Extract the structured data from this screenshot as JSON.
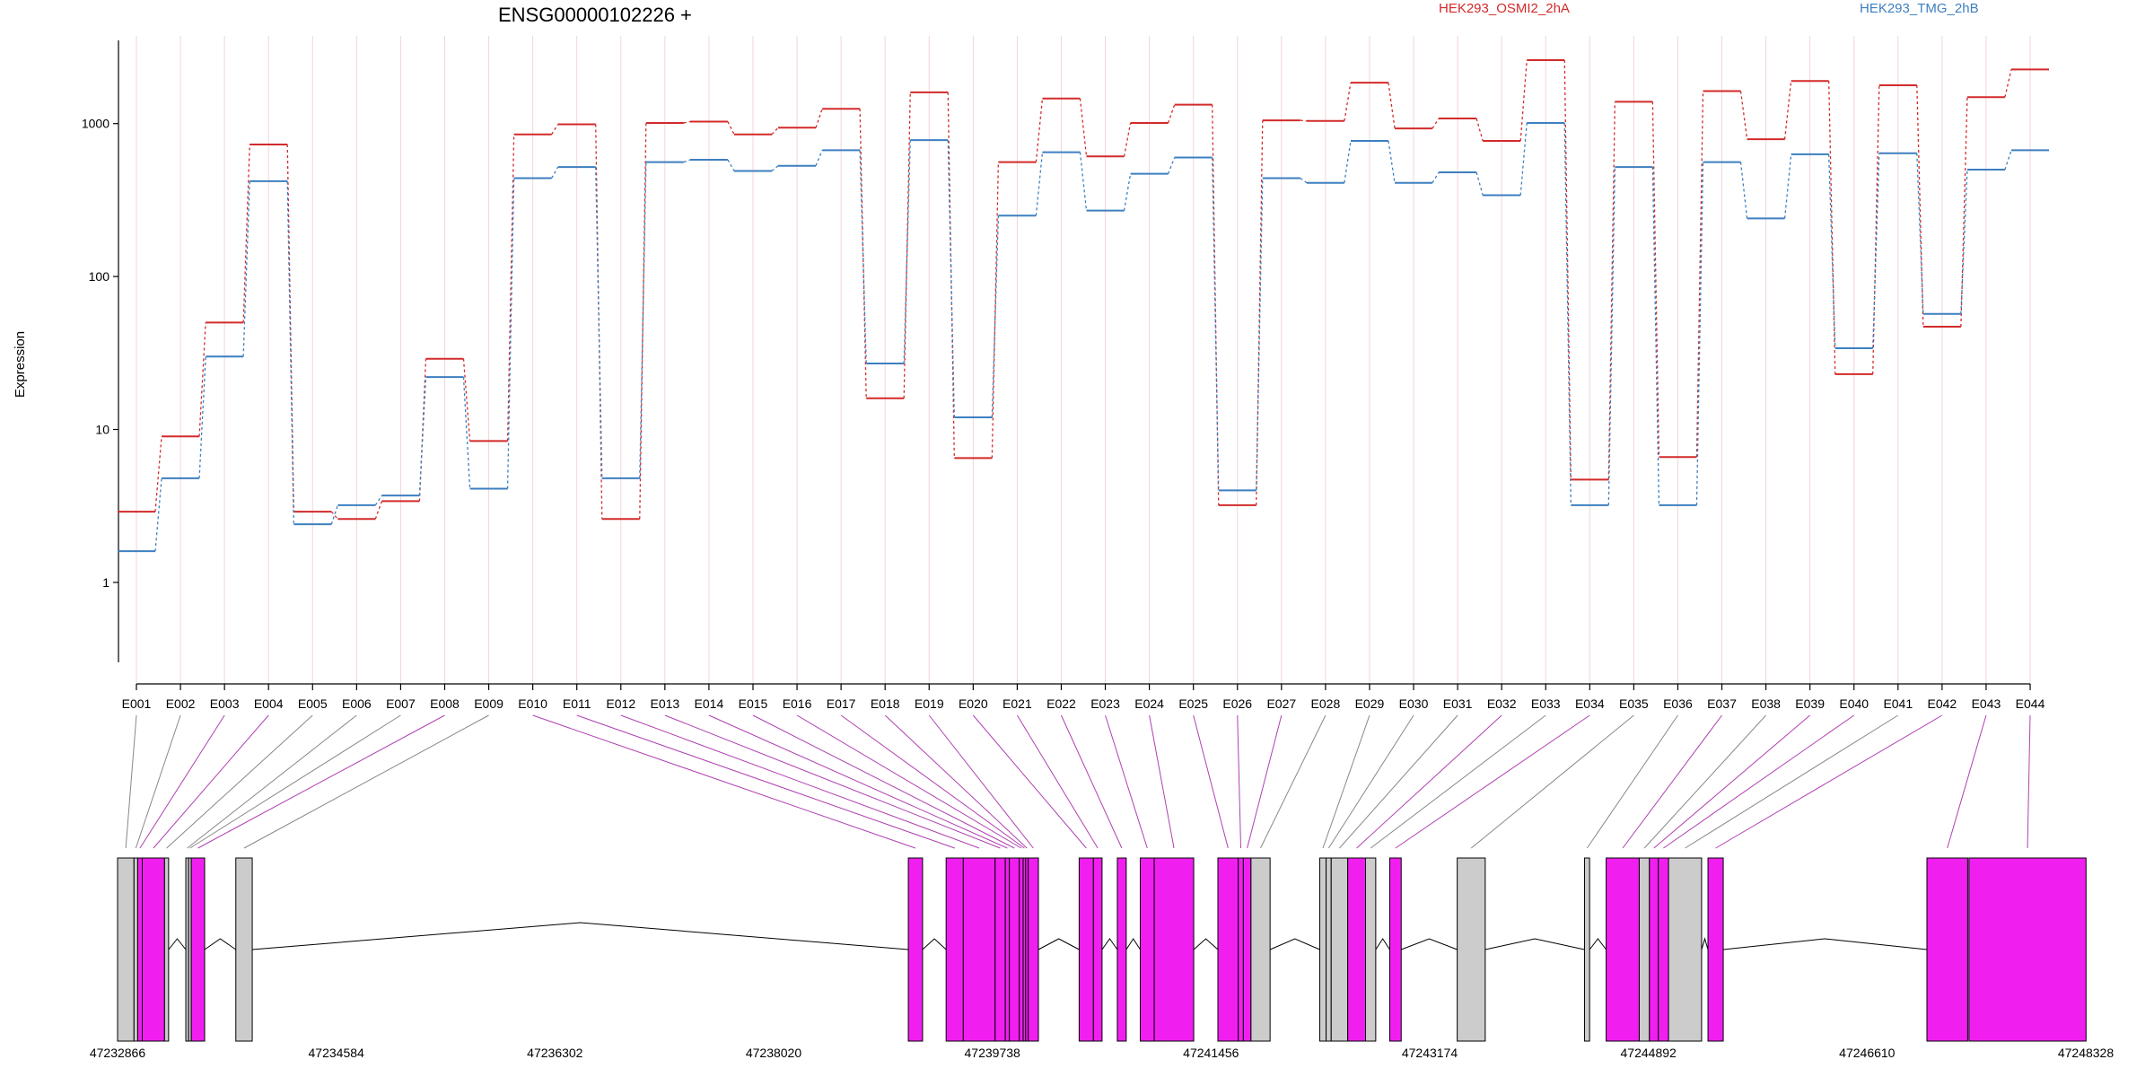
{
  "chart_data": {
    "type": "line",
    "title": "ENSG00000102226 +",
    "ylabel": "Expression",
    "yscale": "log",
    "ylim": [
      0.3,
      3500
    ],
    "yticks": [
      1,
      10,
      100,
      1000
    ],
    "ytick_labels": [
      "1",
      "10",
      "100",
      "1000"
    ],
    "grid": "faint vertical lines at each exon",
    "legend_position": "top",
    "categories": [
      "E001",
      "E002",
      "E003",
      "E004",
      "E005",
      "E006",
      "E007",
      "E008",
      "E009",
      "E010",
      "E011",
      "E012",
      "E013",
      "E014",
      "E015",
      "E016",
      "E017",
      "E018",
      "E019",
      "E020",
      "E021",
      "E022",
      "E023",
      "E024",
      "E025",
      "E026",
      "E027",
      "E028",
      "E029",
      "E030",
      "E031",
      "E032",
      "E033",
      "E034",
      "E035",
      "E036",
      "E037",
      "E038",
      "E039",
      "E040",
      "E041",
      "E042",
      "E043",
      "E044"
    ],
    "series": [
      {
        "name": "HEK293_OSMI2_2hA",
        "color": "#d32a2a",
        "values": [
          2.9,
          9.0,
          50,
          730,
          2.9,
          2.6,
          3.4,
          29,
          8.4,
          850,
          990,
          2.6,
          1010,
          1030,
          850,
          940,
          1250,
          16,
          1600,
          6.5,
          560,
          1460,
          610,
          1010,
          1330,
          3.2,
          1050,
          1040,
          1850,
          930,
          1080,
          770,
          2600,
          4.7,
          1390,
          6.6,
          1630,
          790,
          1900,
          23,
          1780,
          47,
          1490,
          2260
        ]
      },
      {
        "name": "HEK293_TMG_2hB",
        "color": "#3d7fbf",
        "values": [
          1.6,
          4.8,
          30,
          420,
          2.4,
          3.2,
          3.7,
          22,
          4.1,
          440,
          520,
          4.8,
          560,
          580,
          490,
          530,
          670,
          27,
          780,
          12,
          250,
          650,
          270,
          470,
          600,
          4.0,
          440,
          410,
          770,
          410,
          480,
          340,
          1010,
          3.2,
          520,
          3.2,
          560,
          240,
          630,
          34,
          640,
          57,
          500,
          670
        ]
      }
    ],
    "gene_model": {
      "coordinate_ticks": [
        "47232866",
        "47234584",
        "47236302",
        "47238020",
        "47239738",
        "47241456",
        "47243174",
        "47244892",
        "47246610",
        "47248328"
      ],
      "colors": {
        "exon_default": "#cccccc",
        "exon_highlight": "#f01ff0",
        "intron": "#000000",
        "connector_default": "#888888",
        "connector_highlight": "#b040b0"
      },
      "exons": [
        {
          "id": "E001",
          "start": 47232866,
          "end": 47232995,
          "highlight": false
        },
        {
          "id": "E002",
          "start": 47232995,
          "end": 47233024,
          "highlight": false
        },
        {
          "id": "E003",
          "start": 47233024,
          "end": 47233060,
          "highlight": true
        },
        {
          "id": "E004",
          "start": 47233060,
          "end": 47233235,
          "highlight": true
        },
        {
          "id": "E005",
          "start": 47233235,
          "end": 47233267,
          "highlight": false
        },
        {
          "id": "E006",
          "start": 47233402,
          "end": 47233424,
          "highlight": false
        },
        {
          "id": "E007",
          "start": 47233424,
          "end": 47233445,
          "highlight": false
        },
        {
          "id": "E008",
          "start": 47233445,
          "end": 47233550,
          "highlight": true
        },
        {
          "id": "E009",
          "start": 47233795,
          "end": 47233924,
          "highlight": false
        },
        {
          "id": "E010",
          "start": 47239078,
          "end": 47239190,
          "highlight": true
        },
        {
          "id": "E011",
          "start": 47239375,
          "end": 47239510,
          "highlight": true
        },
        {
          "id": "E012",
          "start": 47239510,
          "end": 47239760,
          "highlight": true
        },
        {
          "id": "E013",
          "start": 47239760,
          "end": 47239840,
          "highlight": true
        },
        {
          "id": "E014",
          "start": 47239840,
          "end": 47239872,
          "highlight": true
        },
        {
          "id": "E015",
          "start": 47239872,
          "end": 47239950,
          "highlight": true
        },
        {
          "id": "E016",
          "start": 47239950,
          "end": 47239980,
          "highlight": true
        },
        {
          "id": "E017",
          "start": 47239980,
          "end": 47240000,
          "highlight": true
        },
        {
          "id": "E018",
          "start": 47240000,
          "end": 47240020,
          "highlight": true
        },
        {
          "id": "E019",
          "start": 47240020,
          "end": 47240100,
          "highlight": true
        },
        {
          "id": "E020",
          "start": 47240420,
          "end": 47240532,
          "highlight": true
        },
        {
          "id": "E021",
          "start": 47240532,
          "end": 47240600,
          "highlight": true
        },
        {
          "id": "E022",
          "start": 47240720,
          "end": 47240790,
          "highlight": true
        },
        {
          "id": "E023",
          "start": 47240900,
          "end": 47241010,
          "highlight": true
        },
        {
          "id": "E024",
          "start": 47241010,
          "end": 47241320,
          "highlight": true
        },
        {
          "id": "E025",
          "start": 47241510,
          "end": 47241670,
          "highlight": true
        },
        {
          "id": "E026",
          "start": 47241670,
          "end": 47241710,
          "highlight": true
        },
        {
          "id": "E027",
          "start": 47241710,
          "end": 47241770,
          "highlight": true
        },
        {
          "id": "E028",
          "start": 47241770,
          "end": 47241920,
          "highlight": false
        },
        {
          "id": "E029",
          "start": 47242310,
          "end": 47242360,
          "highlight": false
        },
        {
          "id": "E030",
          "start": 47242360,
          "end": 47242400,
          "highlight": false
        },
        {
          "id": "E031",
          "start": 47242400,
          "end": 47242530,
          "highlight": false
        },
        {
          "id": "E032",
          "start": 47242530,
          "end": 47242670,
          "highlight": true
        },
        {
          "id": "E033",
          "start": 47242670,
          "end": 47242750,
          "highlight": false
        },
        {
          "id": "E034",
          "start": 47242860,
          "end": 47242950,
          "highlight": true
        },
        {
          "id": "E035",
          "start": 47243390,
          "end": 47243610,
          "highlight": false
        },
        {
          "id": "E036",
          "start": 47244390,
          "end": 47244430,
          "highlight": false
        },
        {
          "id": "E037",
          "start": 47244560,
          "end": 47244820,
          "highlight": true
        },
        {
          "id": "E038",
          "start": 47244820,
          "end": 47244900,
          "highlight": false
        },
        {
          "id": "E039",
          "start": 47244900,
          "end": 47244970,
          "highlight": true
        },
        {
          "id": "E040",
          "start": 47244970,
          "end": 47245050,
          "highlight": true
        },
        {
          "id": "E041",
          "start": 47245050,
          "end": 47245310,
          "highlight": false
        },
        {
          "id": "E042",
          "start": 47245360,
          "end": 47245480,
          "highlight": true
        },
        {
          "id": "E043",
          "start": 47247080,
          "end": 47247400,
          "highlight": true
        },
        {
          "id": "E044",
          "start": 47247410,
          "end": 47248330,
          "highlight": true
        }
      ]
    }
  }
}
